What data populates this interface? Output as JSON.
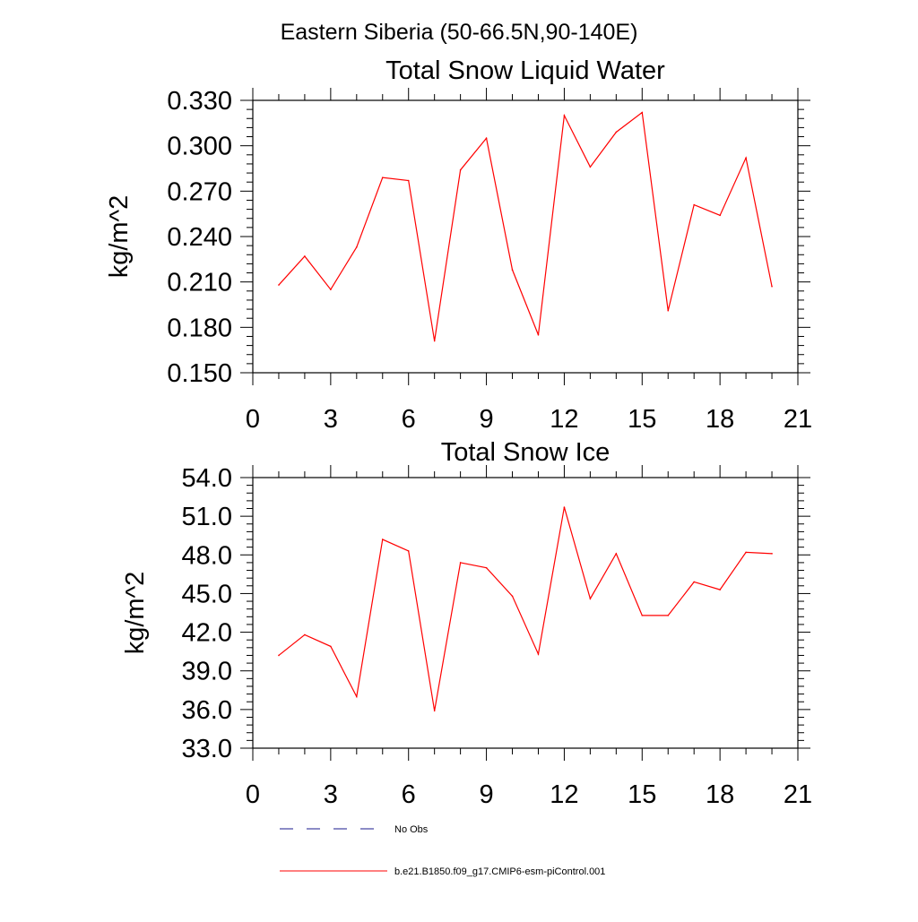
{
  "figure": {
    "suptitle": "Eastern Siberia (50-66.5N,90-140E)"
  },
  "legend": {
    "placement": "bottom-left",
    "entries": [
      {
        "label": "No Obs",
        "style": "dashed",
        "color": "#1a1a8c"
      },
      {
        "label": "b.e21.B1850.f09_g17.CMIP6-esm-piControl.001",
        "style": "solid",
        "color": "#ff0000"
      }
    ]
  },
  "chart_data": [
    {
      "type": "line",
      "title": "Total Snow Liquid Water",
      "xlabel": "",
      "ylabel": "kg/m^2",
      "xlim": [
        0,
        21
      ],
      "ylim": [
        0.15,
        0.33
      ],
      "xticks": [
        "0",
        "3",
        "6",
        "9",
        "12",
        "15",
        "18",
        "21"
      ],
      "yticks": [
        "0.150",
        "0.180",
        "0.210",
        "0.240",
        "0.270",
        "0.300",
        "0.330"
      ],
      "grid": false,
      "x": [
        1,
        2,
        3,
        4,
        5,
        6,
        7,
        8,
        9,
        10,
        11,
        12,
        13,
        14,
        15,
        16,
        17,
        18,
        19,
        20
      ],
      "series": [
        {
          "name": "b.e21.B1850.f09_g17.CMIP6-esm-piControl.001",
          "color": "#ff0000",
          "values": [
            0.208,
            0.227,
            0.205,
            0.233,
            0.279,
            0.277,
            0.171,
            0.284,
            0.305,
            0.218,
            0.175,
            0.32,
            0.286,
            0.309,
            0.322,
            0.191,
            0.261,
            0.254,
            0.292,
            0.207
          ]
        }
      ]
    },
    {
      "type": "line",
      "title": "Total Snow Ice",
      "xlabel": "",
      "ylabel": "kg/m^2",
      "xlim": [
        0,
        21
      ],
      "ylim": [
        33.0,
        54.0
      ],
      "xticks": [
        "0",
        "3",
        "6",
        "9",
        "12",
        "15",
        "18",
        "21"
      ],
      "yticks": [
        "33.0",
        "36.0",
        "39.0",
        "42.0",
        "45.0",
        "48.0",
        "51.0",
        "54.0"
      ],
      "grid": false,
      "x": [
        1,
        2,
        3,
        4,
        5,
        6,
        7,
        8,
        9,
        10,
        11,
        12,
        13,
        14,
        15,
        16,
        17,
        18,
        19,
        20
      ],
      "series": [
        {
          "name": "b.e21.B1850.f09_g17.CMIP6-esm-piControl.001",
          "color": "#ff0000",
          "values": [
            40.2,
            41.8,
            40.9,
            37.0,
            49.2,
            48.3,
            35.9,
            47.4,
            47.0,
            44.8,
            40.3,
            51.7,
            44.6,
            48.1,
            43.3,
            43.3,
            45.9,
            45.3,
            48.2,
            48.1
          ]
        }
      ]
    }
  ]
}
